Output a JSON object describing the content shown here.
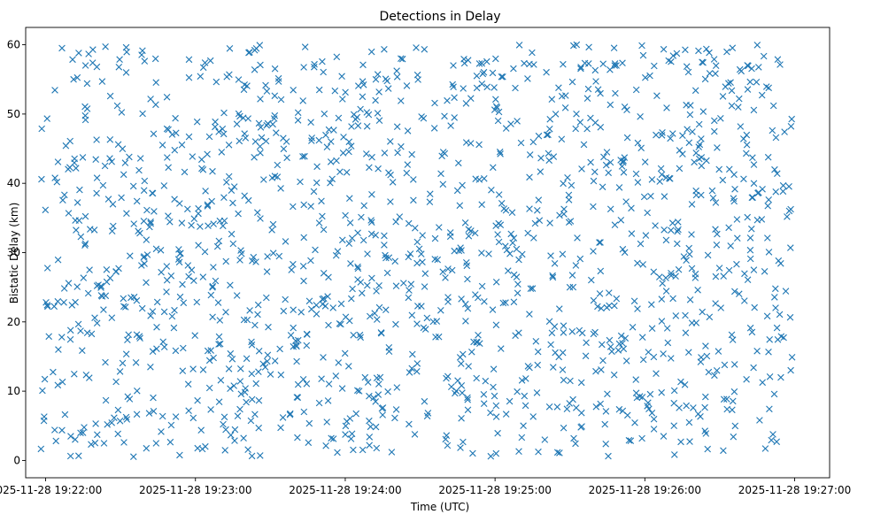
{
  "chart_data": {
    "type": "scatter",
    "title": "Detections in Delay",
    "xlabel": "Time (UTC)",
    "ylabel": "Bistatic Delay (km)",
    "marker": "x",
    "color": "#1f77b4",
    "grid": false,
    "legend": "none",
    "xlim": [
      "2025-11-28 19:21:52",
      "2025-11-28 19:27:14"
    ],
    "ylim": [
      -2.5,
      62.5
    ],
    "xticks": [
      "2025-11-28 19:22:00",
      "2025-11-28 19:23:00",
      "2025-11-28 19:24:00",
      "2025-11-28 19:25:00",
      "2025-11-28 19:26:00",
      "2025-11-28 19:27:00"
    ],
    "yticks": [
      0,
      10,
      20,
      30,
      40,
      50,
      60
    ],
    "series": [
      {
        "x_range": [
          "2025-11-28 19:21:58",
          "2025-11-28 19:26:59"
        ],
        "y_range": [
          0.5,
          60
        ],
        "count": 1500,
        "distribution": "uniform"
      }
    ]
  }
}
